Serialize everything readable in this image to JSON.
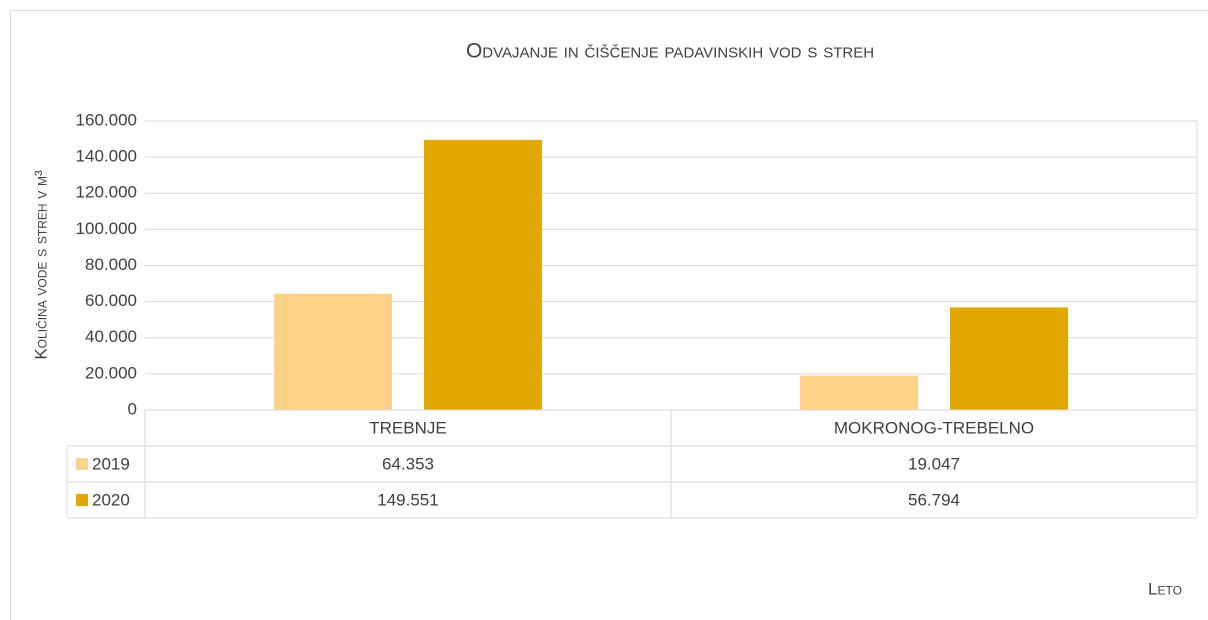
{
  "chart_data": {
    "type": "bar",
    "title": "Odvajanje in čiščenje padavinskih vod s streh",
    "y_label": "Količina vode s streh v m³",
    "x_label": "Leto",
    "categories": [
      "TREBNJE",
      "MOKRONOG-TREBELNO"
    ],
    "series": [
      {
        "name": "2019",
        "color": "#ffd28a",
        "values": [
          64353,
          19047
        ],
        "value_labels": [
          "64.353",
          "19.047"
        ]
      },
      {
        "name": "2020",
        "color": "#e0a800",
        "values": [
          149551,
          56794
        ],
        "value_labels": [
          "149.551",
          "56.794"
        ]
      }
    ],
    "ylim": [
      0,
      160000
    ],
    "yticks": [
      0,
      {
        "value": 20000,
        "label": "20.000"
      },
      {
        "value": 40000,
        "label": "40.000"
      },
      {
        "value": 60000,
        "label": "60.000"
      },
      {
        "value": 80000,
        "label": "80.000"
      },
      {
        "value": 100000,
        "label": "100.000"
      },
      {
        "value": 120000,
        "label": "120.000"
      },
      {
        "value": 140000,
        "label": "140.000"
      },
      {
        "value": 160000,
        "label": "160.000"
      }
    ],
    "grid": true
  }
}
